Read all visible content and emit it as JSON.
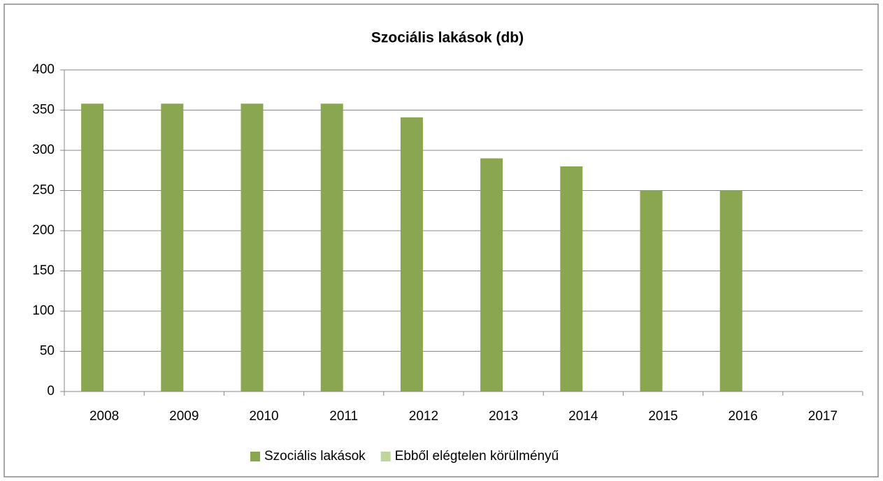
{
  "chart_data": {
    "type": "bar",
    "title": "Szociális lakások (db)",
    "categories": [
      "2008",
      "2009",
      "2010",
      "2011",
      "2012",
      "2013",
      "2014",
      "2015",
      "2016",
      "2017"
    ],
    "series": [
      {
        "name": "Szociális lakások",
        "color": "#8aa650",
        "values": [
          358,
          358,
          358,
          358,
          341,
          290,
          280,
          250,
          250,
          null
        ]
      },
      {
        "name": "Ebből elégtelen körülményű",
        "color": "#bcd69c",
        "values": [
          null,
          null,
          null,
          null,
          null,
          null,
          null,
          null,
          null,
          null
        ]
      }
    ],
    "ylim": [
      0,
      400
    ],
    "yticks": [
      0,
      50,
      100,
      150,
      200,
      250,
      300,
      350,
      400
    ],
    "grid": true,
    "legend": "bottom"
  }
}
